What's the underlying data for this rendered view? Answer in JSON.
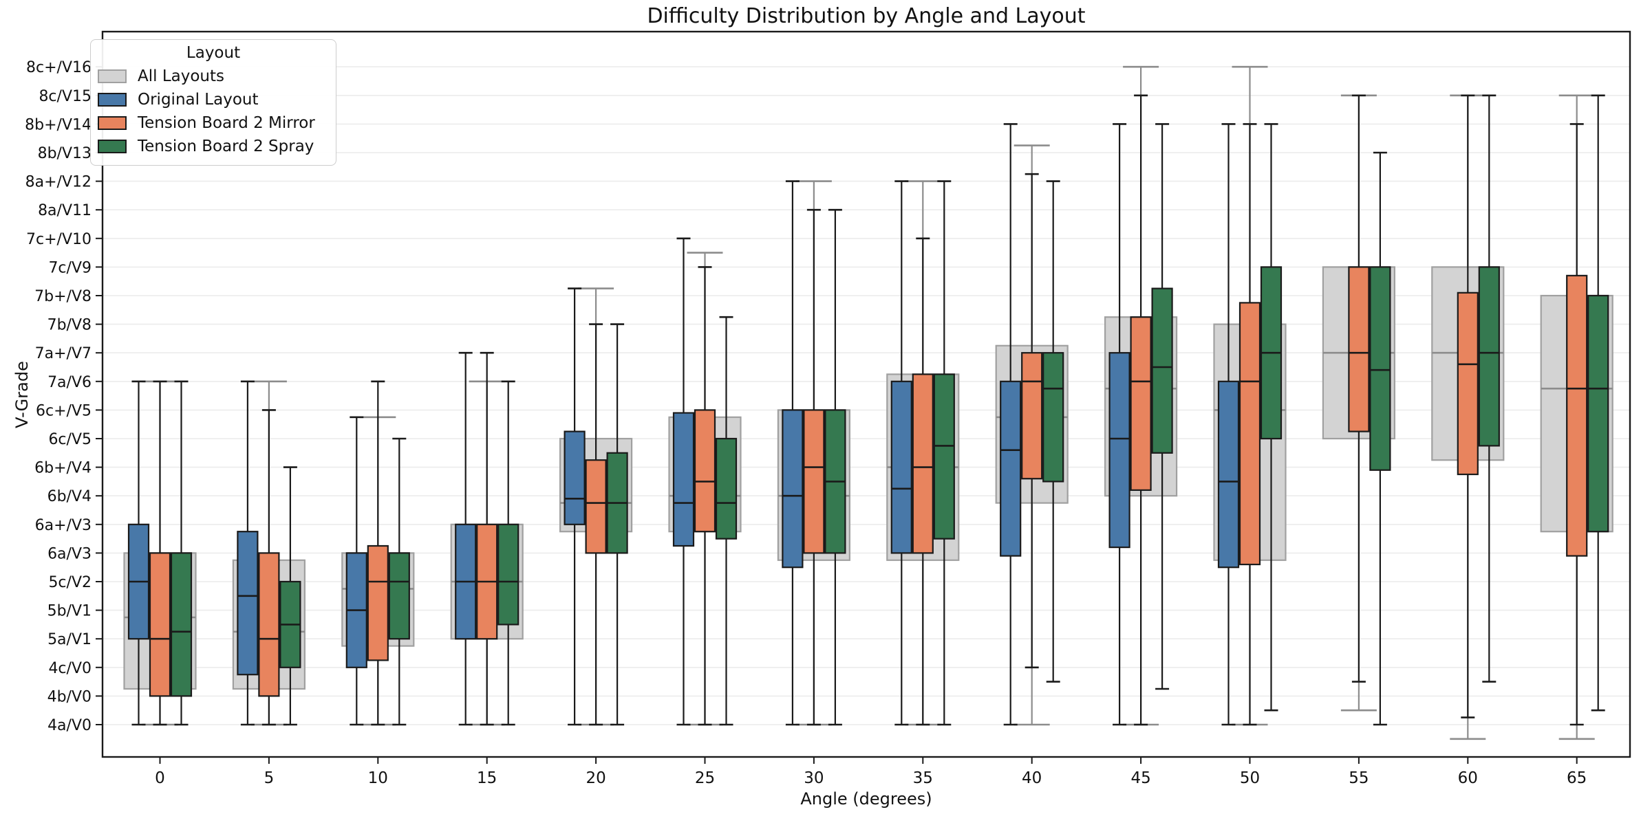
{
  "chart_data": {
    "type": "grouped_boxplot",
    "title": "Difficulty Distribution by Angle and Layout",
    "xlabel": "Angle (degrees)",
    "ylabel": "V-Grade",
    "legend_title": "Layout",
    "categories": [
      0,
      5,
      10,
      15,
      20,
      25,
      30,
      35,
      40,
      45,
      50,
      55,
      60,
      65
    ],
    "y_tick_labels": [
      "4a/V0",
      "4b/V0",
      "4c/V0",
      "5a/V1",
      "5b/V1",
      "5c/V2",
      "6a/V3",
      "6a+/V3",
      "6b/V4",
      "6b+/V4",
      "6c/V5",
      "6c+/V5",
      "7a/V6",
      "7a+/V7",
      "7b/V8",
      "7b+/V8",
      "7c/V9",
      "7c+/V10",
      "8a/V11",
      "8a+/V12",
      "8b/V13",
      "8b+/V14",
      "8c/V15",
      "8c+/V16"
    ],
    "grid": true,
    "ylim_grades": [
      -1.15,
      24.2
    ],
    "box_value_format": "[whisker_low, q1, median, q3, whisker_high] in grade index units (0 = 4a/V0)",
    "series": [
      {
        "name": "All Layouts",
        "key": "all-layouts",
        "color": "#d3d3d3",
        "edge_color": "#a0a0a0",
        "whisker_color": "#8c8c8c",
        "median_color": "#8c8c8c",
        "boxes": [
          [
            0,
            1.25,
            3.75,
            6,
            12
          ],
          [
            0,
            1.25,
            3.25,
            5.75,
            12
          ],
          [
            0,
            2.75,
            4.75,
            6,
            10.75
          ],
          [
            0,
            3,
            5,
            7,
            12
          ],
          [
            0,
            6.75,
            7.75,
            10,
            15.25
          ],
          [
            0,
            6.75,
            8,
            10.75,
            16.5
          ],
          [
            0,
            5.75,
            8,
            11,
            19
          ],
          [
            0,
            5.75,
            9,
            12.25,
            19
          ],
          [
            0,
            7.75,
            10.75,
            13.25,
            20.25
          ],
          [
            0,
            8,
            11.75,
            14.25,
            23
          ],
          [
            0,
            5.75,
            11,
            14,
            23
          ],
          [
            0.5,
            10,
            13,
            16,
            22
          ],
          [
            -0.5,
            9.25,
            13,
            16,
            22
          ],
          [
            -0.5,
            6.75,
            11.75,
            15,
            22
          ]
        ]
      },
      {
        "name": "Original Layout",
        "key": "original-layout",
        "color": "#4878a8",
        "edge_color": "#1a1a1a",
        "whisker_color": "#1a1a1a",
        "median_color": "#1a1a1a",
        "boxes": [
          [
            0,
            3,
            5,
            7,
            12
          ],
          [
            0,
            1.75,
            4.5,
            6.75,
            12
          ],
          [
            0,
            2,
            4,
            6,
            10.75
          ],
          [
            0,
            3,
            5,
            7,
            13
          ],
          [
            0,
            7,
            7.9,
            10.25,
            15.25
          ],
          [
            0,
            6.25,
            7.75,
            10.9,
            17
          ],
          [
            0,
            5.5,
            8,
            11,
            19
          ],
          [
            0,
            6,
            8.25,
            12,
            19
          ],
          [
            0,
            5.9,
            9.6,
            12,
            21
          ],
          [
            0,
            6.2,
            10,
            13,
            21
          ],
          [
            0,
            5.5,
            8.5,
            12,
            21
          ],
          null,
          null,
          null
        ]
      },
      {
        "name": "Tension Board 2 Mirror",
        "key": "tb2-mirror",
        "color": "#e8845e",
        "edge_color": "#1a1a1a",
        "whisker_color": "#1a1a1a",
        "median_color": "#1a1a1a",
        "boxes": [
          [
            0,
            1,
            3,
            6,
            12
          ],
          [
            0,
            1,
            3,
            6,
            11
          ],
          [
            0,
            2.25,
            5,
            6.25,
            12
          ],
          [
            0,
            3,
            5,
            7,
            13
          ],
          [
            0,
            6,
            7.75,
            9.25,
            14
          ],
          [
            0,
            6.75,
            8.5,
            11,
            16
          ],
          [
            0,
            6,
            9,
            11,
            18
          ],
          [
            0,
            6,
            9,
            12.25,
            17
          ],
          [
            2,
            8.6,
            12,
            13,
            19.25
          ],
          [
            0,
            8.2,
            12,
            14.25,
            22
          ],
          [
            0,
            5.6,
            12,
            14.75,
            21
          ],
          [
            1.5,
            10.25,
            13,
            16,
            22
          ],
          [
            0.25,
            8.75,
            12.6,
            15.1,
            22
          ],
          [
            0,
            5.9,
            11.75,
            15.7,
            21
          ]
        ]
      },
      {
        "name": "Tension Board 2 Spray",
        "key": "tb2-spray",
        "color": "#357950",
        "edge_color": "#1a1a1a",
        "whisker_color": "#1a1a1a",
        "median_color": "#1a1a1a",
        "boxes": [
          [
            0,
            1,
            3.25,
            6,
            12
          ],
          [
            0,
            2,
            3.5,
            5,
            9
          ],
          [
            0,
            3,
            5,
            6,
            10
          ],
          [
            0,
            3.5,
            5,
            7,
            12
          ],
          [
            0,
            6,
            7.75,
            9.5,
            14
          ],
          [
            0,
            6.5,
            7.75,
            10,
            14.25
          ],
          [
            0,
            6,
            8.5,
            11,
            18
          ],
          [
            0,
            6.5,
            9.75,
            12.25,
            19
          ],
          [
            1.5,
            8.5,
            11.75,
            13,
            19
          ],
          [
            1.25,
            9.5,
            12.5,
            15.25,
            21
          ],
          [
            0.5,
            10,
            13,
            16,
            21
          ],
          [
            0,
            8.9,
            12.4,
            16,
            20
          ],
          [
            1.5,
            9.75,
            13,
            16,
            22
          ],
          [
            0.5,
            6.75,
            11.75,
            15,
            22
          ]
        ]
      }
    ]
  }
}
